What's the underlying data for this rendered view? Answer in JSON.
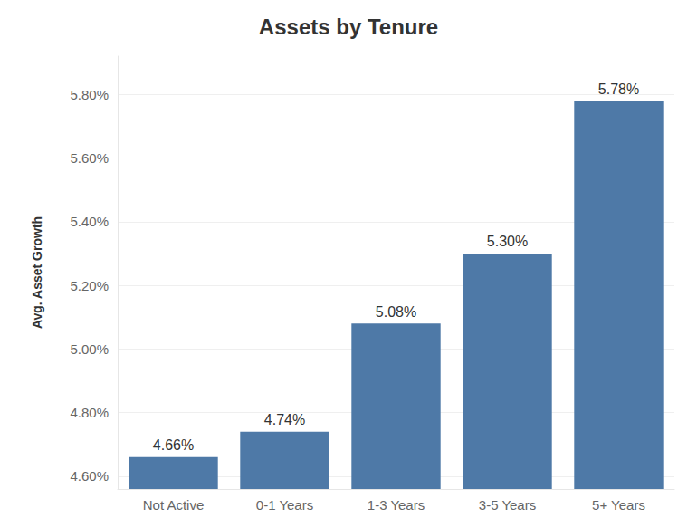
{
  "chart_data": {
    "type": "bar",
    "title": "Assets by Tenure",
    "y_label": "Avg. Asset Growth",
    "categories": [
      "Not Active",
      "0-1 Years",
      "1-3 Years",
      "3-5 Years",
      "5+ Years"
    ],
    "values": [
      4.66,
      4.74,
      5.08,
      5.3,
      5.78
    ],
    "value_labels": [
      "4.66%",
      "4.74%",
      "5.08%",
      "5.30%",
      "5.78%"
    ],
    "color": "#4e79a7",
    "ylim": [
      4.56,
      5.92
    ],
    "yticks": [
      {
        "value": 4.6,
        "label": "4.60%"
      },
      {
        "value": 4.8,
        "label": "4.80%"
      },
      {
        "value": 5.0,
        "label": "5.00%"
      },
      {
        "value": 5.2,
        "label": "5.20%"
      },
      {
        "value": 5.4,
        "label": "5.40%"
      },
      {
        "value": 5.6,
        "label": "5.60%"
      },
      {
        "value": 5.8,
        "label": "5.80%"
      }
    ],
    "grid": true,
    "data_labels": true
  }
}
